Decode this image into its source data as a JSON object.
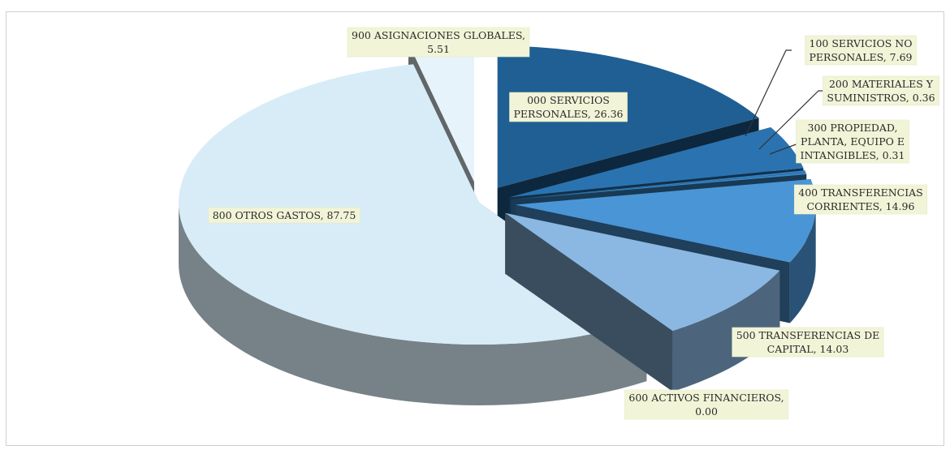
{
  "chart_data": {
    "type": "pie",
    "title": "",
    "style": "3d-exploded",
    "slices": [
      {
        "label": "000 SERVICIOS PERSONALES",
        "value": 26.36,
        "text": "000 SERVICIOS PERSONALES, 26.36",
        "lines": [
          "000 SERVICIOS",
          "PERSONALES, 26.36"
        ],
        "color": "#1f5f94"
      },
      {
        "label": "100 SERVICIOS NO PERSONALES",
        "value": 7.69,
        "text": "100 SERVICIOS NO PERSONALES, 7.69",
        "lines": [
          "100 SERVICIOS NO",
          "PERSONALES, 7.69"
        ],
        "color": "#2a73b0"
      },
      {
        "label": "200 MATERIALES Y SUMINISTROS",
        "value": 0.36,
        "text": "200 MATERIALES Y SUMINISTROS, 0.36",
        "lines": [
          "200 MATERIALES Y",
          "SUMINISTROS, 0.36"
        ],
        "color": "#3380c0"
      },
      {
        "label": "300 PROPIEDAD, PLANTA, EQUIPO E INTANGIBLES",
        "value": 0.31,
        "text": "300 PROPIEDAD, PLANTA, EQUIPO E INTANGIBLES, 0.31",
        "lines": [
          "300 PROPIEDAD,",
          "PLANTA, EQUIPO  E",
          "INTANGIBLES, 0.31"
        ],
        "color": "#3a89c9"
      },
      {
        "label": "400 TRANSFERENCIAS CORRIENTES",
        "value": 14.96,
        "text": "400 TRANSFERENCIAS CORRIENTES, 14.96",
        "lines": [
          "400 TRANSFERENCIAS",
          "CORRIENTES, 14.96"
        ],
        "color": "#4a95d6"
      },
      {
        "label": "500 TRANSFERENCIAS DE CAPITAL",
        "value": 14.03,
        "text": "500 TRANSFERENCIAS DE CAPITAL, 14.03",
        "lines": [
          "500 TRANSFERENCIAS DE",
          "CAPITAL, 14.03"
        ],
        "color": "#8bb8e2"
      },
      {
        "label": "600 ACTIVOS FINANCIEROS",
        "value": 0.0,
        "text": "600 ACTIVOS FINANCIEROS, 0.00",
        "lines": [
          "600 ACTIVOS FINANCIEROS,",
          "0.00"
        ],
        "color": "#a9caea"
      },
      {
        "label": "800 OTROS GASTOS",
        "value": 87.75,
        "text": "800 OTROS GASTOS, 87.75",
        "lines": [
          "800 OTROS GASTOS, 87.75"
        ],
        "color": "#d8ecf8"
      },
      {
        "label": "900 ASIGNACIONES GLOBALES",
        "value": 5.51,
        "text": "900 ASIGNACIONES GLOBALES, 5.51",
        "lines": [
          "900 ASIGNACIONES GLOBALES,",
          "5.51"
        ],
        "color": "#e6f3fb"
      }
    ]
  }
}
